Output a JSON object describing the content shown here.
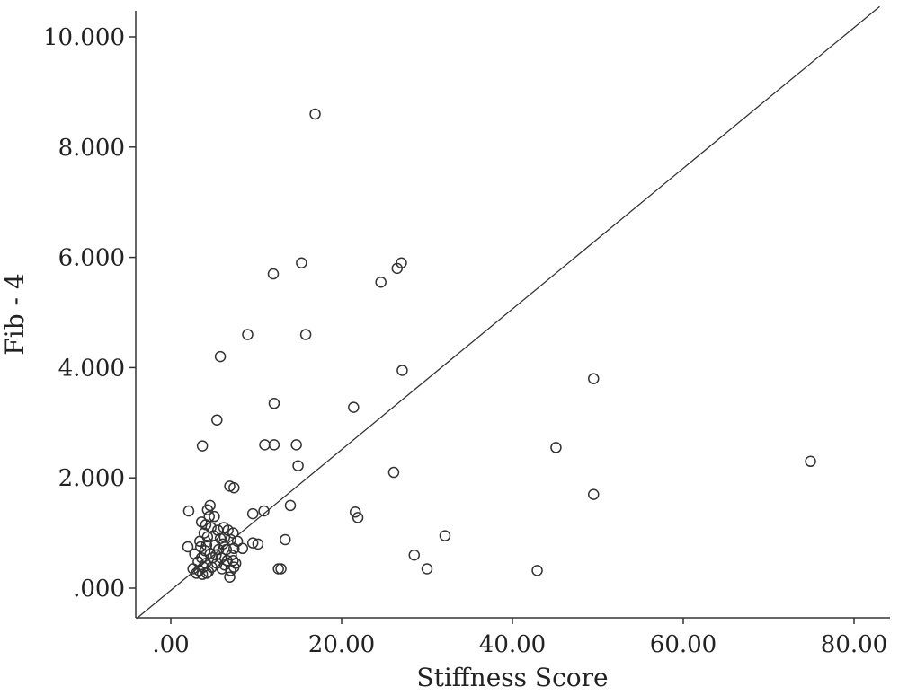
{
  "chart_data": {
    "type": "scatter",
    "title": "",
    "xlabel": "Stiffness Score",
    "ylabel": "Fib - 4",
    "xlim": [
      -5,
      83
    ],
    "ylim": [
      -0.55,
      10.45
    ],
    "grid": false,
    "legend": "none",
    "x_ticks": [
      {
        "value": 0,
        "label": ".00"
      },
      {
        "value": 20,
        "label": "20.00"
      },
      {
        "value": 40,
        "label": "40.00"
      },
      {
        "value": 60,
        "label": "60.00"
      },
      {
        "value": 80,
        "label": "80.00"
      }
    ],
    "y_ticks": [
      {
        "value": 0,
        "label": ".000"
      },
      {
        "value": 2,
        "label": "2.000"
      },
      {
        "value": 4,
        "label": "4.000"
      },
      {
        "value": 6,
        "label": "6.000"
      },
      {
        "value": 8,
        "label": "8.000"
      },
      {
        "value": 10,
        "label": "10.000"
      }
    ],
    "reference_line": {
      "type": "identity-like",
      "from": [
        -4,
        -0.55
      ],
      "to": [
        83,
        10.55
      ]
    },
    "series": [
      {
        "points": [
          [
            16.9,
            8.6
          ],
          [
            15.3,
            5.9
          ],
          [
            12.0,
            5.7
          ],
          [
            27.0,
            5.9
          ],
          [
            26.5,
            5.8
          ],
          [
            24.6,
            5.55
          ],
          [
            9.0,
            4.6
          ],
          [
            15.8,
            4.6
          ],
          [
            5.8,
            4.2
          ],
          [
            27.1,
            3.95
          ],
          [
            49.5,
            3.8
          ],
          [
            12.1,
            3.35
          ],
          [
            21.4,
            3.28
          ],
          [
            5.4,
            3.05
          ],
          [
            3.7,
            2.58
          ],
          [
            11.0,
            2.6
          ],
          [
            12.1,
            2.6
          ],
          [
            14.7,
            2.6
          ],
          [
            45.1,
            2.55
          ],
          [
            74.9,
            2.3
          ],
          [
            14.9,
            2.22
          ],
          [
            26.1,
            2.1
          ],
          [
            6.9,
            1.85
          ],
          [
            7.4,
            1.82
          ],
          [
            49.5,
            1.7
          ],
          [
            14.0,
            1.5
          ],
          [
            2.1,
            1.4
          ],
          [
            10.9,
            1.4
          ],
          [
            9.6,
            1.35
          ],
          [
            21.6,
            1.38
          ],
          [
            21.9,
            1.28
          ],
          [
            4.6,
            1.5
          ],
          [
            4.3,
            1.42
          ],
          [
            4.5,
            1.3
          ],
          [
            5.1,
            1.3
          ],
          [
            3.6,
            1.2
          ],
          [
            4.1,
            1.15
          ],
          [
            4.7,
            1.1
          ],
          [
            5.5,
            1.05
          ],
          [
            6.2,
            1.1
          ],
          [
            6.7,
            1.05
          ],
          [
            7.3,
            1.0
          ],
          [
            3.9,
            1.0
          ],
          [
            4.3,
            0.93
          ],
          [
            5.0,
            0.95
          ],
          [
            5.8,
            0.9
          ],
          [
            6.3,
            0.92
          ],
          [
            7.0,
            0.88
          ],
          [
            7.8,
            0.85
          ],
          [
            3.4,
            0.85
          ],
          [
            32.1,
            0.95
          ],
          [
            13.4,
            0.88
          ],
          [
            9.6,
            0.82
          ],
          [
            10.2,
            0.8
          ],
          [
            2.0,
            0.75
          ],
          [
            3.5,
            0.75
          ],
          [
            4.2,
            0.78
          ],
          [
            5.2,
            0.78
          ],
          [
            6.1,
            0.8
          ],
          [
            7.4,
            0.72
          ],
          [
            8.4,
            0.72
          ],
          [
            4.0,
            0.68
          ],
          [
            5.6,
            0.7
          ],
          [
            6.5,
            0.7
          ],
          [
            2.8,
            0.62
          ],
          [
            4.6,
            0.62
          ],
          [
            5.3,
            0.6
          ],
          [
            7.1,
            0.6
          ],
          [
            28.5,
            0.6
          ],
          [
            3.6,
            0.55
          ],
          [
            4.9,
            0.55
          ],
          [
            5.9,
            0.55
          ],
          [
            6.6,
            0.5
          ],
          [
            7.3,
            0.5
          ],
          [
            3.2,
            0.48
          ],
          [
            4.1,
            0.45
          ],
          [
            5.4,
            0.45
          ],
          [
            6.3,
            0.42
          ],
          [
            7.6,
            0.45
          ],
          [
            3.8,
            0.38
          ],
          [
            4.8,
            0.38
          ],
          [
            6.0,
            0.35
          ],
          [
            7.0,
            0.32
          ],
          [
            7.4,
            0.38
          ],
          [
            2.6,
            0.35
          ],
          [
            3.3,
            0.32
          ],
          [
            4.4,
            0.3
          ],
          [
            12.6,
            0.35
          ],
          [
            12.9,
            0.35
          ],
          [
            30.0,
            0.35
          ],
          [
            42.9,
            0.32
          ],
          [
            3.0,
            0.27
          ],
          [
            3.7,
            0.25
          ],
          [
            4.2,
            0.27
          ],
          [
            6.9,
            0.2
          ]
        ]
      }
    ]
  }
}
